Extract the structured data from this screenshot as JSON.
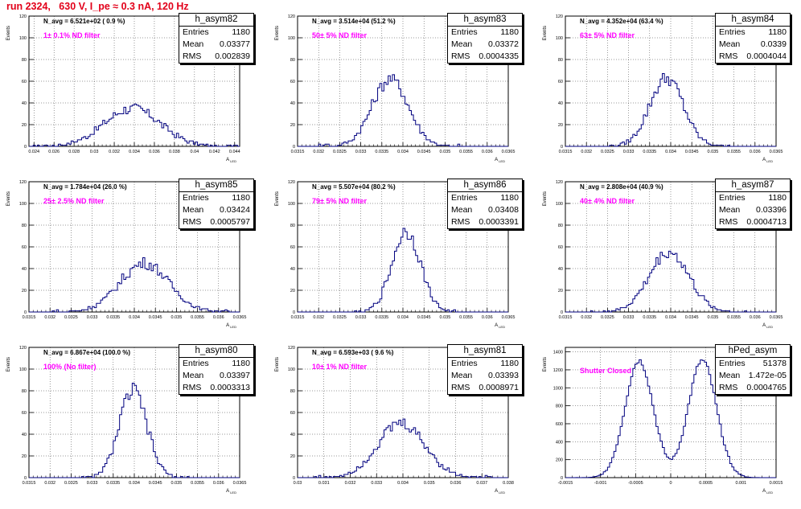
{
  "title": "run 2324,   630 V, I_pe ≈ 0.3 nA, 120 Hz",
  "colors": {
    "title": "#e2001a",
    "hist": "#00007f",
    "filter_text": "#ff00ff"
  },
  "chart_data": [
    {
      "type": "histogram",
      "name": "h_asym82",
      "navg": "N_avg = 6.521e+02 ( 0.9 %)",
      "filter": "1± 0.1% ND filter",
      "stats": {
        "Entries": "1180",
        "Mean": "0.03377",
        "RMS": "0.002839"
      },
      "xlabel": "A_LED",
      "ylabel": "Events",
      "xlim": [
        0.0235,
        0.0445
      ],
      "ylim": [
        0,
        120
      ],
      "xticks": [
        "0.024",
        "0.026",
        "0.028",
        "0.03",
        "0.032",
        "0.034",
        "0.036",
        "0.038",
        "0.04",
        "0.042",
        "0.044"
      ],
      "yticks": [
        "0",
        "20",
        "40",
        "60",
        "80",
        "100",
        "120"
      ],
      "peak": {
        "center": 0.0338,
        "sigma": 0.0028,
        "height": 35
      }
    },
    {
      "type": "histogram",
      "name": "h_asym83",
      "navg": "N_avg = 3.514e+04 (51.2 %)",
      "filter": "50± 5% ND filter",
      "stats": {
        "Entries": "1180",
        "Mean": "0.03372",
        "RMS": "0.0004335"
      },
      "xlabel": "A_LED",
      "ylabel": "Events",
      "xlim": [
        0.0315,
        0.0365
      ],
      "ylim": [
        0,
        120
      ],
      "xticks": [
        "0.0315",
        "0.032",
        "0.0325",
        "0.033",
        "0.0335",
        "0.034",
        "0.0345",
        "0.035",
        "0.0355",
        "0.036",
        "0.0365"
      ],
      "yticks": [
        "0",
        "20",
        "40",
        "60",
        "80",
        "100",
        "120"
      ],
      "peak": {
        "center": 0.0337,
        "sigma": 0.00043,
        "height": 62
      }
    },
    {
      "type": "histogram",
      "name": "h_asym84",
      "navg": "N_avg = 4.352e+04 (63.4 %)",
      "filter": "63± 5% ND filter",
      "stats": {
        "Entries": "1180",
        "Mean": "0.0339",
        "RMS": "0.0004044"
      },
      "xlabel": "A_LED",
      "ylabel": "Events",
      "xlim": [
        0.0315,
        0.0365
      ],
      "ylim": [
        0,
        120
      ],
      "xticks": [
        "0.0315",
        "0.032",
        "0.0325",
        "0.033",
        "0.0335",
        "0.034",
        "0.0345",
        "0.035",
        "0.0355",
        "0.036",
        "0.0365"
      ],
      "yticks": [
        "0",
        "20",
        "40",
        "60",
        "80",
        "100",
        "120"
      ],
      "peak": {
        "center": 0.0339,
        "sigma": 0.0004,
        "height": 63
      }
    },
    {
      "type": "histogram",
      "name": "h_asym85",
      "navg": "N_avg = 1.784e+04 (26.0 %)",
      "filter": "25± 2.5% ND filter",
      "stats": {
        "Entries": "1180",
        "Mean": "0.03424",
        "RMS": "0.0005797"
      },
      "xlabel": "A_LED",
      "ylabel": "Events",
      "xlim": [
        0.0315,
        0.0365
      ],
      "ylim": [
        0,
        120
      ],
      "xticks": [
        "0.0315",
        "0.032",
        "0.0325",
        "0.033",
        "0.0335",
        "0.034",
        "0.0345",
        "0.035",
        "0.0355",
        "0.036",
        "0.0365"
      ],
      "yticks": [
        "0",
        "20",
        "40",
        "60",
        "80",
        "100",
        "120"
      ],
      "peak": {
        "center": 0.03424,
        "sigma": 0.00058,
        "height": 45
      }
    },
    {
      "type": "histogram",
      "name": "h_asym86",
      "navg": "N_avg = 5.507e+04 (80.2 %)",
      "filter": "79± 5% ND filter",
      "stats": {
        "Entries": "1180",
        "Mean": "0.03408",
        "RMS": "0.0003391"
      },
      "xlabel": "A_LED",
      "ylabel": "Events",
      "xlim": [
        0.0315,
        0.0365
      ],
      "ylim": [
        0,
        120
      ],
      "xticks": [
        "0.0315",
        "0.032",
        "0.0325",
        "0.033",
        "0.0335",
        "0.034",
        "0.0345",
        "0.035",
        "0.0355",
        "0.036",
        "0.0365"
      ],
      "yticks": [
        "0",
        "20",
        "40",
        "60",
        "80",
        "100",
        "120"
      ],
      "peak": {
        "center": 0.03408,
        "sigma": 0.00034,
        "height": 74
      }
    },
    {
      "type": "histogram",
      "name": "h_asym87",
      "navg": "N_avg = 2.808e+04 (40.9 %)",
      "filter": "40± 4% ND filter",
      "stats": {
        "Entries": "1180",
        "Mean": "0.03396",
        "RMS": "0.0004713"
      },
      "xlabel": "A_LED",
      "ylabel": "Events",
      "xlim": [
        0.0315,
        0.0365
      ],
      "ylim": [
        0,
        120
      ],
      "xticks": [
        "0.0315",
        "0.032",
        "0.0325",
        "0.033",
        "0.0335",
        "0.034",
        "0.0345",
        "0.035",
        "0.0355",
        "0.036",
        "0.0365"
      ],
      "yticks": [
        "0",
        "20",
        "40",
        "60",
        "80",
        "100",
        "120"
      ],
      "peak": {
        "center": 0.03396,
        "sigma": 0.00047,
        "height": 55
      }
    },
    {
      "type": "histogram",
      "name": "h_asym80",
      "navg": "N_avg = 6.867e+04 (100.0 %)",
      "filter": "100% (No filter)",
      "stats": {
        "Entries": "1180",
        "Mean": "0.03397",
        "RMS": "0.0003313"
      },
      "xlabel": "A_LED",
      "ylabel": "Events",
      "xlim": [
        0.0315,
        0.0365
      ],
      "ylim": [
        0,
        120
      ],
      "xticks": [
        "0.0315",
        "0.032",
        "0.0325",
        "0.033",
        "0.0335",
        "0.034",
        "0.0345",
        "0.035",
        "0.0355",
        "0.036",
        "0.0365"
      ],
      "yticks": [
        "0",
        "20",
        "40",
        "60",
        "80",
        "100",
        "120"
      ],
      "peak": {
        "center": 0.03397,
        "sigma": 0.00033,
        "height": 80
      }
    },
    {
      "type": "histogram",
      "name": "h_asym81",
      "navg": "N_avg = 6.593e+03 ( 9.6 %)",
      "filter": "10± 1% ND filter",
      "stats": {
        "Entries": "1180",
        "Mean": "0.03393",
        "RMS": "0.0008971"
      },
      "xlabel": "A_LED",
      "ylabel": "Events",
      "xlim": [
        0.03,
        0.038
      ],
      "ylim": [
        0,
        120
      ],
      "xticks": [
        "0.03",
        "0.031",
        "0.032",
        "0.033",
        "0.034",
        "0.035",
        "0.036",
        "0.037",
        "0.038"
      ],
      "yticks": [
        "0",
        "20",
        "40",
        "60",
        "80",
        "100",
        "120"
      ],
      "peak": {
        "center": 0.03393,
        "sigma": 0.0009,
        "height": 50
      }
    },
    {
      "type": "histogram",
      "name": "hPed_asym",
      "navg": "",
      "filter": "Shutter Closed",
      "stats": {
        "Entries": "51378",
        "Mean": "1.472e-05",
        "RMS": "0.0004765"
      },
      "xlabel": "A_LED",
      "ylabel": "Events",
      "xlim": [
        -0.0015,
        0.0015
      ],
      "ylim": [
        0,
        1450
      ],
      "xticks": [
        "-0.0015",
        "-0.001",
        "-0.0005",
        "0",
        "0.0005",
        "0.001",
        "0.0015"
      ],
      "yticks": [
        "0",
        "200",
        "400",
        "600",
        "800",
        "1000",
        "1200",
        "1400"
      ],
      "peak": {
        "center": 0,
        "sigma": 0.0002,
        "height": 1330,
        "double": 0.00045
      }
    }
  ]
}
